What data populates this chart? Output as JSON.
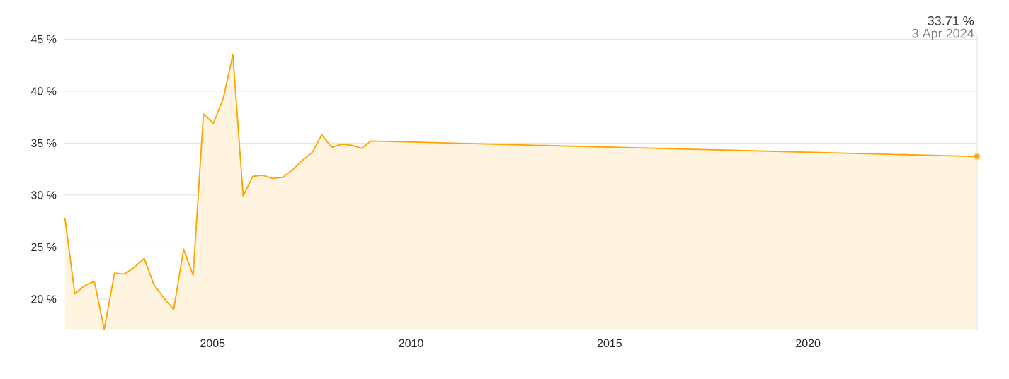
{
  "chart_data": {
    "type": "area",
    "grid": "y",
    "marker": "none",
    "line_style": "solid",
    "x": [
      2001.28,
      2001.53,
      2001.78,
      2002.02,
      2002.27,
      2002.53,
      2002.78,
      2003.01,
      2003.28,
      2003.52,
      2003.75,
      2004.02,
      2004.27,
      2004.51,
      2004.77,
      2005.02,
      2005.27,
      2005.51,
      2005.77,
      2006.01,
      2006.26,
      2006.51,
      2006.76,
      2007.01,
      2007.25,
      2007.51,
      2007.75,
      2008.0,
      2008.25,
      2008.5,
      2008.75,
      2008.99,
      2024.25
    ],
    "series": [
      {
        "color": "#ffa500",
        "values": [
          27.8,
          20.5,
          21.3,
          21.7,
          17.1,
          22.5,
          22.4,
          23.0,
          23.9,
          21.4,
          20.2,
          19.0,
          24.8,
          22.3,
          37.8,
          36.9,
          39.3,
          43.5,
          29.9,
          31.8,
          31.9,
          31.6,
          31.7,
          32.4,
          33.3,
          34.1,
          35.8,
          34.6,
          34.9,
          34.8,
          34.5,
          35.2,
          33.71
        ]
      }
    ],
    "xlim": [
      2001.25,
      2024.26
    ],
    "xticks": [
      2005,
      2010,
      2015,
      2020
    ],
    "ylim": [
      17,
      45.5
    ],
    "yticks": [
      {
        "value": 20,
        "label": "20 %"
      },
      {
        "value": 25,
        "label": "25 %"
      },
      {
        "value": 30,
        "label": "30 %"
      },
      {
        "value": 35,
        "label": "35 %"
      },
      {
        "value": 40,
        "label": "40 %"
      },
      {
        "value": 45,
        "label": "45 %"
      }
    ],
    "annotations": [
      "33.71 %",
      "3 Apr 2024"
    ]
  }
}
